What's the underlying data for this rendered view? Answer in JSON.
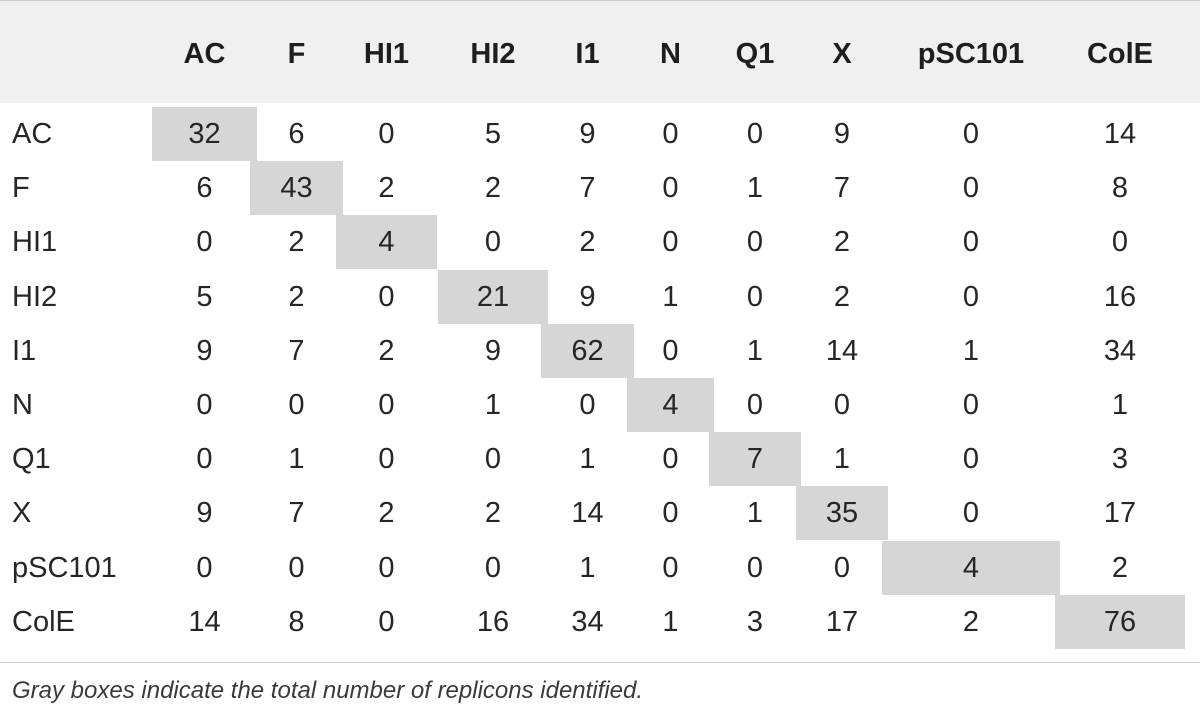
{
  "table": {
    "columns": [
      "AC",
      "F",
      "HI1",
      "HI2",
      "I1",
      "N",
      "Q1",
      "X",
      "pSC101",
      "ColE"
    ],
    "rows": [
      {
        "label": "AC",
        "values": [
          "32",
          "6",
          "0",
          "5",
          "9",
          "0",
          "0",
          "9",
          "0",
          "14"
        ]
      },
      {
        "label": "F",
        "values": [
          "6",
          "43",
          "2",
          "2",
          "7",
          "0",
          "1",
          "7",
          "0",
          "8"
        ]
      },
      {
        "label": "HI1",
        "values": [
          "0",
          "2",
          "4",
          "0",
          "2",
          "0",
          "0",
          "2",
          "0",
          "0"
        ]
      },
      {
        "label": "HI2",
        "values": [
          "5",
          "2",
          "0",
          "21",
          "9",
          "1",
          "0",
          "2",
          "0",
          "16"
        ]
      },
      {
        "label": "I1",
        "values": [
          "9",
          "7",
          "2",
          "9",
          "62",
          "0",
          "1",
          "14",
          "1",
          "34"
        ]
      },
      {
        "label": "N",
        "values": [
          "0",
          "0",
          "0",
          "1",
          "0",
          "4",
          "0",
          "0",
          "0",
          "1"
        ]
      },
      {
        "label": "Q1",
        "values": [
          "0",
          "1",
          "0",
          "0",
          "1",
          "0",
          "7",
          "1",
          "0",
          "3"
        ]
      },
      {
        "label": "X",
        "values": [
          "9",
          "7",
          "2",
          "2",
          "14",
          "0",
          "1",
          "35",
          "0",
          "17"
        ]
      },
      {
        "label": "pSC101",
        "values": [
          "0",
          "0",
          "0",
          "0",
          "1",
          "0",
          "0",
          "0",
          "4",
          "2"
        ]
      },
      {
        "label": "ColE",
        "values": [
          "14",
          "8",
          "0",
          "16",
          "34",
          "1",
          "3",
          "17",
          "2",
          "76"
        ]
      }
    ],
    "diagonal_highlight_color": "#d6d6d6",
    "header_background_color": "#f0f0f0"
  },
  "footnote": "Gray boxes indicate the total number of replicons identified."
}
